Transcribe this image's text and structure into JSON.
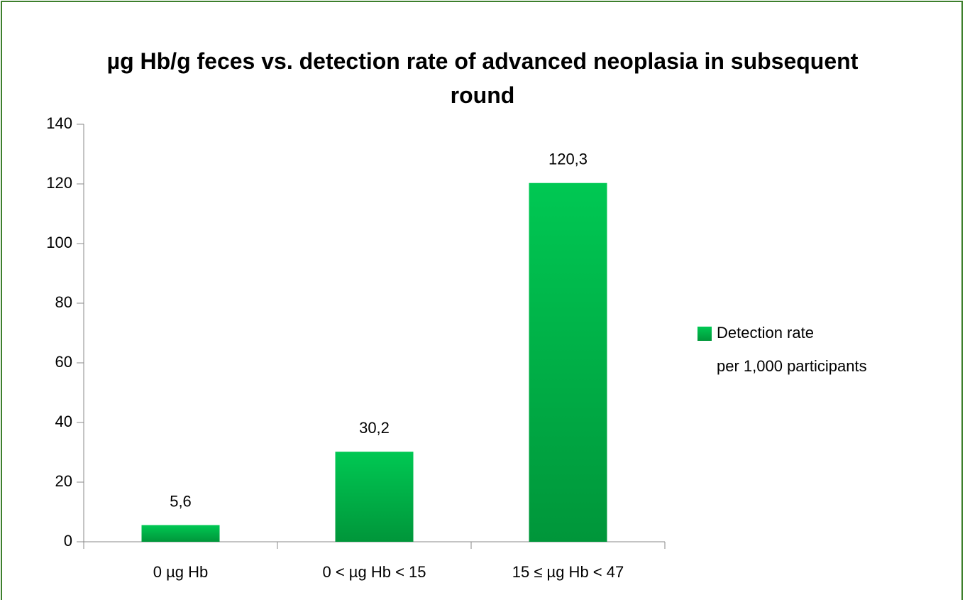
{
  "chart_data": {
    "type": "bar",
    "title": "µg Hb/g feces vs. detection rate of advanced neoplasia in subsequent round",
    "categories": [
      "0 µg Hb",
      "0 < µg Hb < 15",
      "15 ≤ µg Hb < 47"
    ],
    "series": [
      {
        "name": "Detection rate per 1,000 participants",
        "color": "#00b347",
        "values": [
          5.6,
          30.2,
          120.3
        ],
        "value_labels": [
          "5,6",
          "30,2",
          "120,3"
        ]
      }
    ],
    "ylim": [
      0,
      140
    ],
    "yticks": [
      0,
      20,
      40,
      60,
      80,
      100,
      120,
      140
    ],
    "grid": false,
    "legend": "right"
  }
}
